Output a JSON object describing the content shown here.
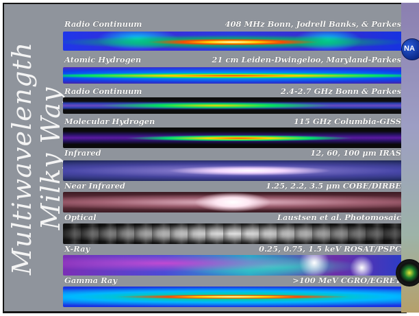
{
  "title": {
    "line1": "Multiwavelength",
    "line2": "Milky Way"
  },
  "bands": [
    {
      "name": "Radio Continuum",
      "source": "408 MHz  Bonn, Jodrell Banks, & Parkes"
    },
    {
      "name": "Atomic Hydrogen",
      "source": "21 cm  Leiden-Dwingeloo, Maryland-Parkes"
    },
    {
      "name": "Radio Continuum",
      "source": "2.4-2.7 GHz  Bonn & Parkes"
    },
    {
      "name": "Molecular Hydrogen",
      "source": "115 GHz  Columbia-GISS"
    },
    {
      "name": "Infrared",
      "source": "12, 60, 100 μm   IRAS"
    },
    {
      "name": "Near Infrared",
      "source": "1.25, 2.2, 3.5 μm   COBE/DIRBE"
    },
    {
      "name": "Optical",
      "source": "Laustsen et al. Photomosaic"
    },
    {
      "name": "X-Ray",
      "source": "0.25, 0.75, 1.5 keV  ROSAT/PSPC"
    },
    {
      "name": "Gamma Ray",
      "source": ">100 MeV   CGRO/EGRET"
    }
  ],
  "logos": {
    "nasa_text": "NA",
    "nasa_icon": "nasa-meatball-logo",
    "seal_icon": "mission-seal"
  },
  "colors": {
    "poster_background": "#8f949c",
    "label_text": "#f7f7f7"
  }
}
